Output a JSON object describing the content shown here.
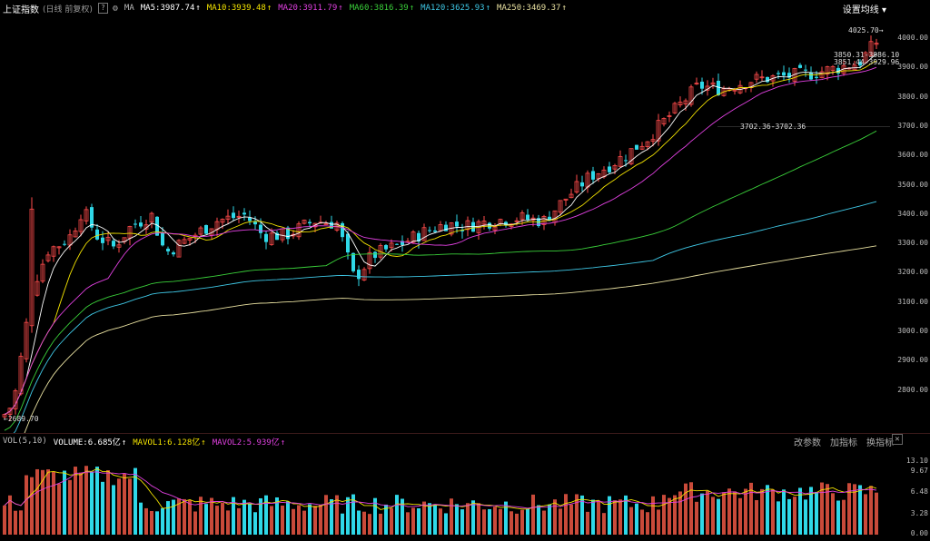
{
  "header": {
    "title": "上证指数",
    "subtitle": "(日线 前复权)",
    "ma_label": "MA",
    "ma_values": [
      {
        "label": "MA5:3987.74",
        "arrow": "↑",
        "color": "#ffffff"
      },
      {
        "label": "MA10:3939.48",
        "arrow": "↑",
        "color": "#f2e200"
      },
      {
        "label": "MA20:3911.79",
        "arrow": "↑",
        "color": "#e040e0"
      },
      {
        "label": "MA60:3816.39",
        "arrow": "↑",
        "color": "#3ad03a"
      },
      {
        "label": "MA120:3625.93",
        "arrow": "↑",
        "color": "#3fc8e6"
      },
      {
        "label": "MA250:3469.37",
        "arrow": "↑",
        "color": "#e8e0a0"
      }
    ],
    "settings_label": "设置均线",
    "settings_arrow": "▾"
  },
  "price_axis": [
    "4000.00",
    "3900.00",
    "3800.00",
    "3700.00",
    "3600.00",
    "3500.00",
    "3400.00",
    "3300.00",
    "3200.00",
    "3100.00",
    "3000.00",
    "2900.00",
    "2800.00"
  ],
  "annotations": {
    "high": "4025.70",
    "low": "2689.70",
    "range_mid": "3702.36-3702.36",
    "range_top1": "3850.31-3986.10",
    "range_top2": "3851.44-3929.96"
  },
  "volume_header": {
    "label": "VOL(5,10)",
    "items": [
      {
        "label": "VOLUME:6.685亿",
        "arrow": "↑",
        "color": "#ffffff"
      },
      {
        "label": "MAVOL1:6.128亿",
        "arrow": "↑",
        "color": "#f2e200"
      },
      {
        "label": "MAVOL2:5.939亿",
        "arrow": "↑",
        "color": "#e040e0"
      }
    ],
    "buttons": [
      "改参数",
      "加指标",
      "换指标"
    ],
    "close": "✕"
  },
  "volume_axis": [
    "13.10",
    "9.67",
    "6.48",
    "3.28",
    "0.00"
  ],
  "colors": {
    "up": "#ff4b4b",
    "down": "#2fd8e8",
    "bg": "#000000"
  }
}
